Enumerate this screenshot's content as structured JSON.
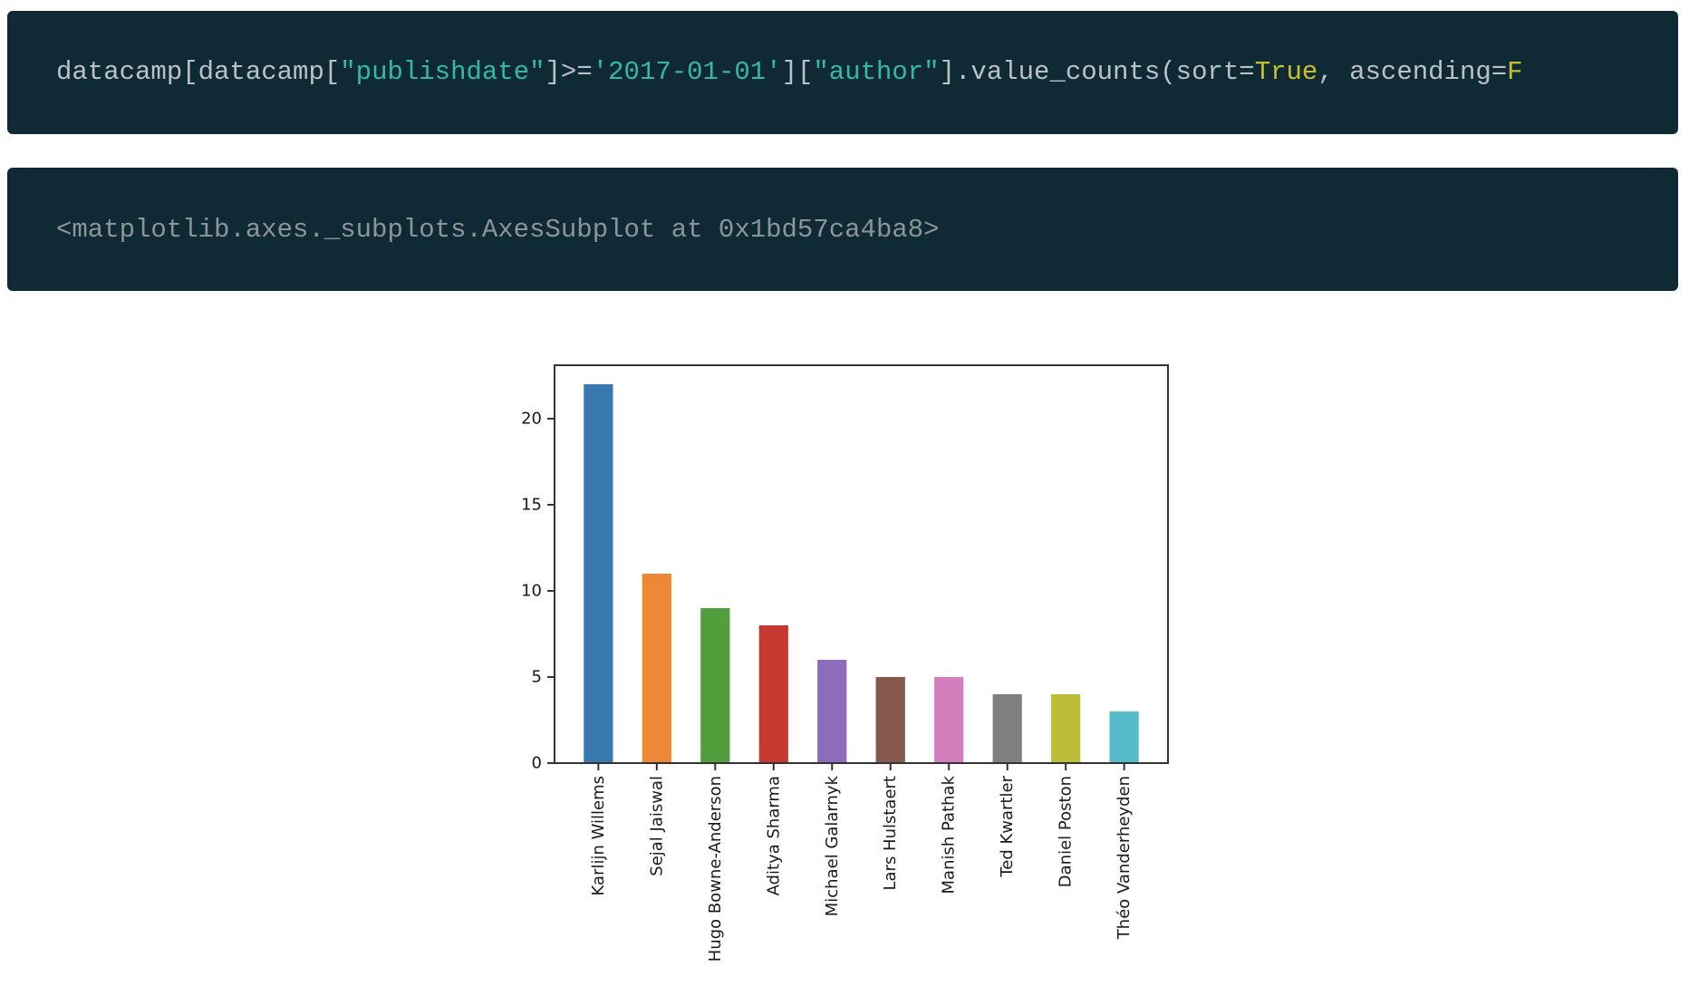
{
  "code_input": {
    "parts": [
      {
        "text": "datacamp[datacamp[",
        "type": "plain"
      },
      {
        "text": "\"publishdate\"",
        "type": "str"
      },
      {
        "text": "]>=",
        "type": "plain"
      },
      {
        "text": "'2017-01-01'",
        "type": "str"
      },
      {
        "text": "][",
        "type": "plain"
      },
      {
        "text": "\"author\"",
        "type": "str"
      },
      {
        "text": "].value_counts(sort=",
        "type": "plain"
      },
      {
        "text": "True",
        "type": "kw"
      },
      {
        "text": ", ascending=",
        "type": "plain"
      },
      {
        "text": "F",
        "type": "kw"
      }
    ]
  },
  "code_output": {
    "text": "<matplotlib.axes._subplots.AxesSubplot at 0x1bd57ca4ba8>"
  },
  "chart_data": {
    "type": "bar",
    "categories": [
      "Karlijn Willems",
      "Sejal Jaiswal",
      "Hugo Bowne-Anderson",
      "Aditya Sharma",
      "Michael Galarnyk",
      "Lars Hulstaert",
      "Manish Pathak",
      "Ted Kwartler",
      "Daniel Poston",
      "Théo Vanderheyden"
    ],
    "values": [
      22,
      11,
      9,
      8,
      6,
      5,
      5,
      4,
      4,
      3
    ],
    "colors": [
      "#3a78b0",
      "#ef8835",
      "#519e3e",
      "#c53931",
      "#8d6cb9",
      "#85584e",
      "#d37fbd",
      "#7f7f7f",
      "#bcbd3a",
      "#57bcca"
    ],
    "yticks": [
      0,
      5,
      10,
      15,
      20
    ],
    "ylim": [
      0,
      23.1
    ],
    "xlabel": "",
    "ylabel": "",
    "title": "",
    "grid": false,
    "legend": "none"
  }
}
